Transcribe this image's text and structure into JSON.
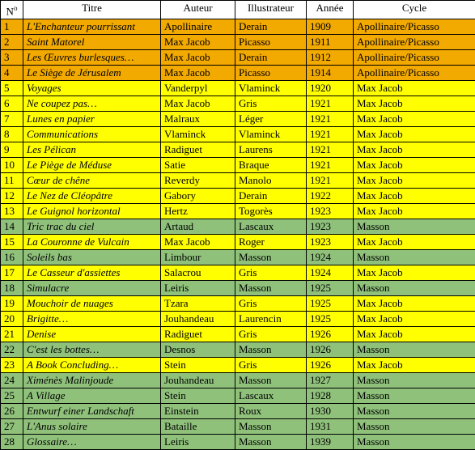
{
  "columns": [
    "Nᵒ",
    "Titre",
    "Auteur",
    "Illustrateur",
    "Année",
    "Cycle"
  ],
  "rows": [
    {
      "n": "1",
      "titre": "L'Enchanteur pourrissant",
      "auteur": "Apollinaire",
      "illu": "Derain",
      "annee": "1909",
      "cycle": "Apollinaire/Picasso",
      "cls": "row-orange"
    },
    {
      "n": "2",
      "titre": "Saint Matorel",
      "auteur": "Max Jacob",
      "illu": "Picasso",
      "annee": "1911",
      "cycle": "Apollinaire/Picasso",
      "cls": "row-orange"
    },
    {
      "n": "3",
      "titre": "Les Œuvres burlesques…",
      "auteur": "Max Jacob",
      "illu": "Derain",
      "annee": "1912",
      "cycle": "Apollinaire/Picasso",
      "cls": "row-orange"
    },
    {
      "n": "4",
      "titre": "Le Siège de Jérusalem",
      "auteur": "Max Jacob",
      "illu": "Picasso",
      "annee": "1914",
      "cycle": "Apollinaire/Picasso",
      "cls": "row-orange"
    },
    {
      "n": "5",
      "titre": "Voyages",
      "auteur": "Vanderpyl",
      "illu": "Vlaminck",
      "annee": "1920",
      "cycle": "Max Jacob",
      "cls": "row-yellow"
    },
    {
      "n": "6",
      "titre": "Ne coupez pas…",
      "auteur": "Max Jacob",
      "illu": "Gris",
      "annee": "1921",
      "cycle": "Max Jacob",
      "cls": "row-yellow"
    },
    {
      "n": "7",
      "titre": "Lunes en papier",
      "auteur": "Malraux",
      "illu": "Léger",
      "annee": "1921",
      "cycle": "Max Jacob",
      "cls": "row-yellow"
    },
    {
      "n": "8",
      "titre": "Communications",
      "auteur": "Vlaminck",
      "illu": "Vlaminck",
      "annee": "1921",
      "cycle": "Max Jacob",
      "cls": "row-yellow"
    },
    {
      "n": "9",
      "titre": "Les Pélican",
      "auteur": "Radiguet",
      "illu": "Laurens",
      "annee": "1921",
      "cycle": "Max Jacob",
      "cls": "row-yellow"
    },
    {
      "n": "10",
      "titre": "Le Piège de Méduse",
      "auteur": "Satie",
      "illu": "Braque",
      "annee": "1921",
      "cycle": "Max Jacob",
      "cls": "row-yellow"
    },
    {
      "n": "11",
      "titre": "Cœur de chêne",
      "auteur": "Reverdy",
      "illu": "Manolo",
      "annee": "1921",
      "cycle": "Max Jacob",
      "cls": "row-yellow"
    },
    {
      "n": "12",
      "titre": "Le Nez de Cléopâtre",
      "auteur": "Gabory",
      "illu": "Derain",
      "annee": "1922",
      "cycle": "Max Jacob",
      "cls": "row-yellow"
    },
    {
      "n": "13",
      "titre": "Le Guignol horizontal",
      "auteur": "Hertz",
      "illu": "Togorès",
      "annee": "1923",
      "cycle": "Max Jacob",
      "cls": "row-yellow"
    },
    {
      "n": "14",
      "titre": "Tric trac du ciel",
      "auteur": "Artaud",
      "illu": "Lascaux",
      "annee": "1923",
      "cycle": "Masson",
      "cls": "row-green"
    },
    {
      "n": "15",
      "titre": "La Couronne de Vulcain",
      "auteur": "Max Jacob",
      "illu": "Roger",
      "annee": "1923",
      "cycle": "Max Jacob",
      "cls": "row-yellow"
    },
    {
      "n": "16",
      "titre": "Soleils bas",
      "auteur": "Limbour",
      "illu": "Masson",
      "annee": "1924",
      "cycle": "Masson",
      "cls": "row-green"
    },
    {
      "n": "17",
      "titre": "Le Casseur d'assiettes",
      "auteur": "Salacrou",
      "illu": "Gris",
      "annee": "1924",
      "cycle": "Max Jacob",
      "cls": "row-yellow"
    },
    {
      "n": "18",
      "titre": "Simulacre",
      "auteur": "Leiris",
      "illu": "Masson",
      "annee": "1925",
      "cycle": "Masson",
      "cls": "row-green"
    },
    {
      "n": "19",
      "titre": "Mouchoir de nuages",
      "auteur": "Tzara",
      "illu": "Gris",
      "annee": "1925",
      "cycle": "Max Jacob",
      "cls": "row-yellow"
    },
    {
      "n": "20",
      "titre": "Brigitte…",
      "auteur": "Jouhandeau",
      "illu": "Laurencin",
      "annee": "1925",
      "cycle": "Max Jacob",
      "cls": "row-yellow"
    },
    {
      "n": "21",
      "titre": "Denise",
      "auteur": "Radiguet",
      "illu": "Gris",
      "annee": "1926",
      "cycle": "Max Jacob",
      "cls": "row-yellow"
    },
    {
      "n": "22",
      "titre": "C'est les bottes…",
      "auteur": "Desnos",
      "illu": "Masson",
      "annee": "1926",
      "cycle": "Masson",
      "cls": "row-green"
    },
    {
      "n": "23",
      "titre": "A Book Concluding…",
      "auteur": "Stein",
      "illu": "Gris",
      "annee": "1926",
      "cycle": "Max Jacob",
      "cls": "row-yellow"
    },
    {
      "n": "24",
      "titre": "Ximénès Malinjoude",
      "auteur": "Jouhandeau",
      "illu": "Masson",
      "annee": "1927",
      "cycle": "Masson",
      "cls": "row-green"
    },
    {
      "n": "25",
      "titre": "A Village",
      "auteur": "Stein",
      "illu": "Lascaux",
      "annee": "1928",
      "cycle": "Masson",
      "cls": "row-green"
    },
    {
      "n": "26",
      "titre": "Entwurf einer Landschaft",
      "auteur": "Einstein",
      "illu": "Roux",
      "annee": "1930",
      "cycle": "Masson",
      "cls": "row-green"
    },
    {
      "n": "27",
      "titre": "L'Anus solaire",
      "auteur": "Bataille",
      "illu": "Masson",
      "annee": "1931",
      "cycle": "Masson",
      "cls": "row-green"
    },
    {
      "n": "28",
      "titre": "Glossaire…",
      "auteur": "Leiris",
      "illu": "Masson",
      "annee": "1939",
      "cycle": "Masson",
      "cls": "row-green"
    }
  ]
}
